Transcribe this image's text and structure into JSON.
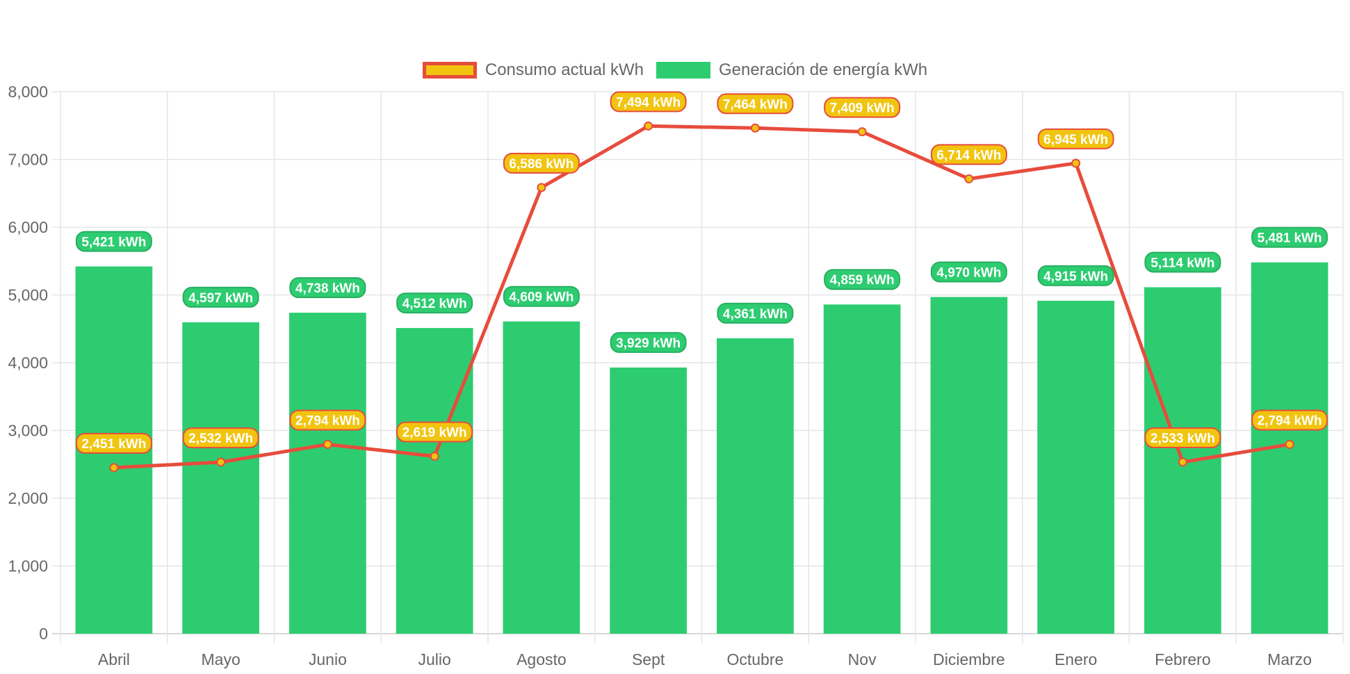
{
  "chart_data": {
    "type": "bar",
    "categories": [
      "Abril",
      "Mayo",
      "Junio",
      "Julio",
      "Agosto",
      "Sept",
      "Octubre",
      "Nov",
      "Diciembre",
      "Enero",
      "Febrero",
      "Marzo"
    ],
    "series": [
      {
        "name": "Consumo actual kWh",
        "type": "line",
        "color": "#e74c3c",
        "point_color": "#f1c40f",
        "values": [
          2451,
          2532,
          2794,
          2619,
          6586,
          7494,
          7464,
          7409,
          6714,
          6945,
          2533,
          2794
        ],
        "labels": [
          "2,451 kWh",
          "2,532 kWh",
          "2,794 kWh",
          "2,619 kWh",
          "6,586 kWh",
          "7,494 kWh",
          "7,464 kWh",
          "7,409 kWh",
          "6,714 kWh",
          "6,945 kWh",
          "2,533 kWh",
          "2,794 kWh"
        ]
      },
      {
        "name": "Generación de energía kWh",
        "type": "bar",
        "color": "#2ecc71",
        "values": [
          5421,
          4597,
          4738,
          4512,
          4609,
          3929,
          4361,
          4859,
          4970,
          4915,
          5114,
          5481
        ],
        "labels": [
          "5,421 kWh",
          "4,597 kWh",
          "4,738 kWh",
          "4,512 kWh",
          "4,609 kWh",
          "3,929 kWh",
          "4,361 kWh",
          "4,859 kWh",
          "4,970 kWh",
          "4,915 kWh",
          "5,114 kWh",
          "5,481 kWh"
        ]
      }
    ],
    "ylim": [
      0,
      8000
    ],
    "yticks": [
      "0",
      "1,000",
      "2,000",
      "3,000",
      "4,000",
      "5,000",
      "6,000",
      "7,000",
      "8,000"
    ],
    "grid": true,
    "legend_position": "top-center",
    "colors": {
      "line": "#e74c3c",
      "point_fill": "#f1c40f",
      "bar": "#2ecc71",
      "bar_label_border": "#27ae60",
      "grid": "#e5e5e5",
      "text": "#666666"
    }
  }
}
